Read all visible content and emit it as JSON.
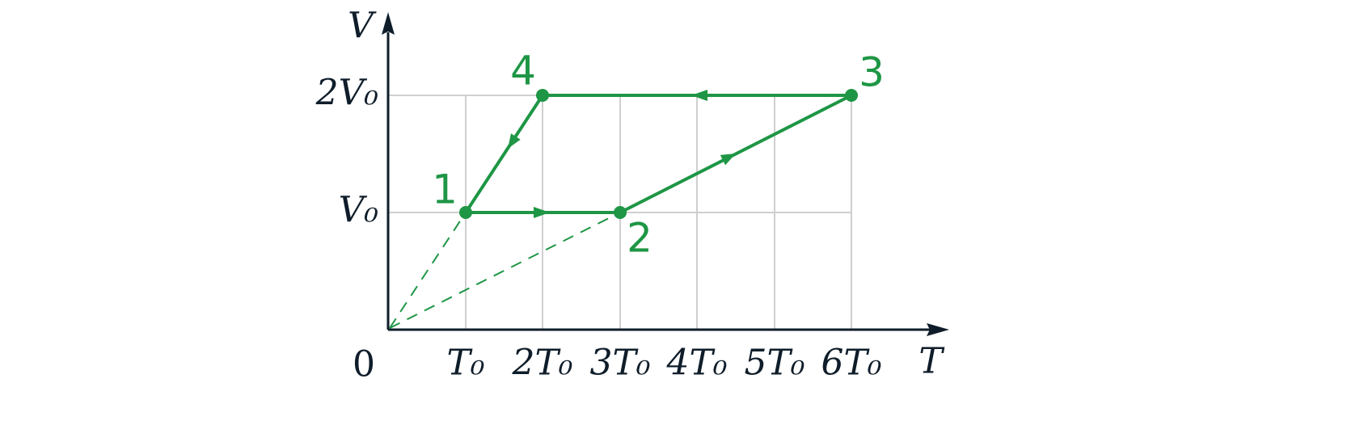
{
  "axes": {
    "x_label": "T",
    "y_label": "V",
    "origin": "0",
    "x_ticks": [
      "T₀",
      "2T₀",
      "3T₀",
      "4T₀",
      "5T₀",
      "6T₀"
    ],
    "y_ticks": [
      "V₀",
      "2V₀"
    ]
  },
  "points": [
    "1",
    "2",
    "3",
    "4"
  ]
}
